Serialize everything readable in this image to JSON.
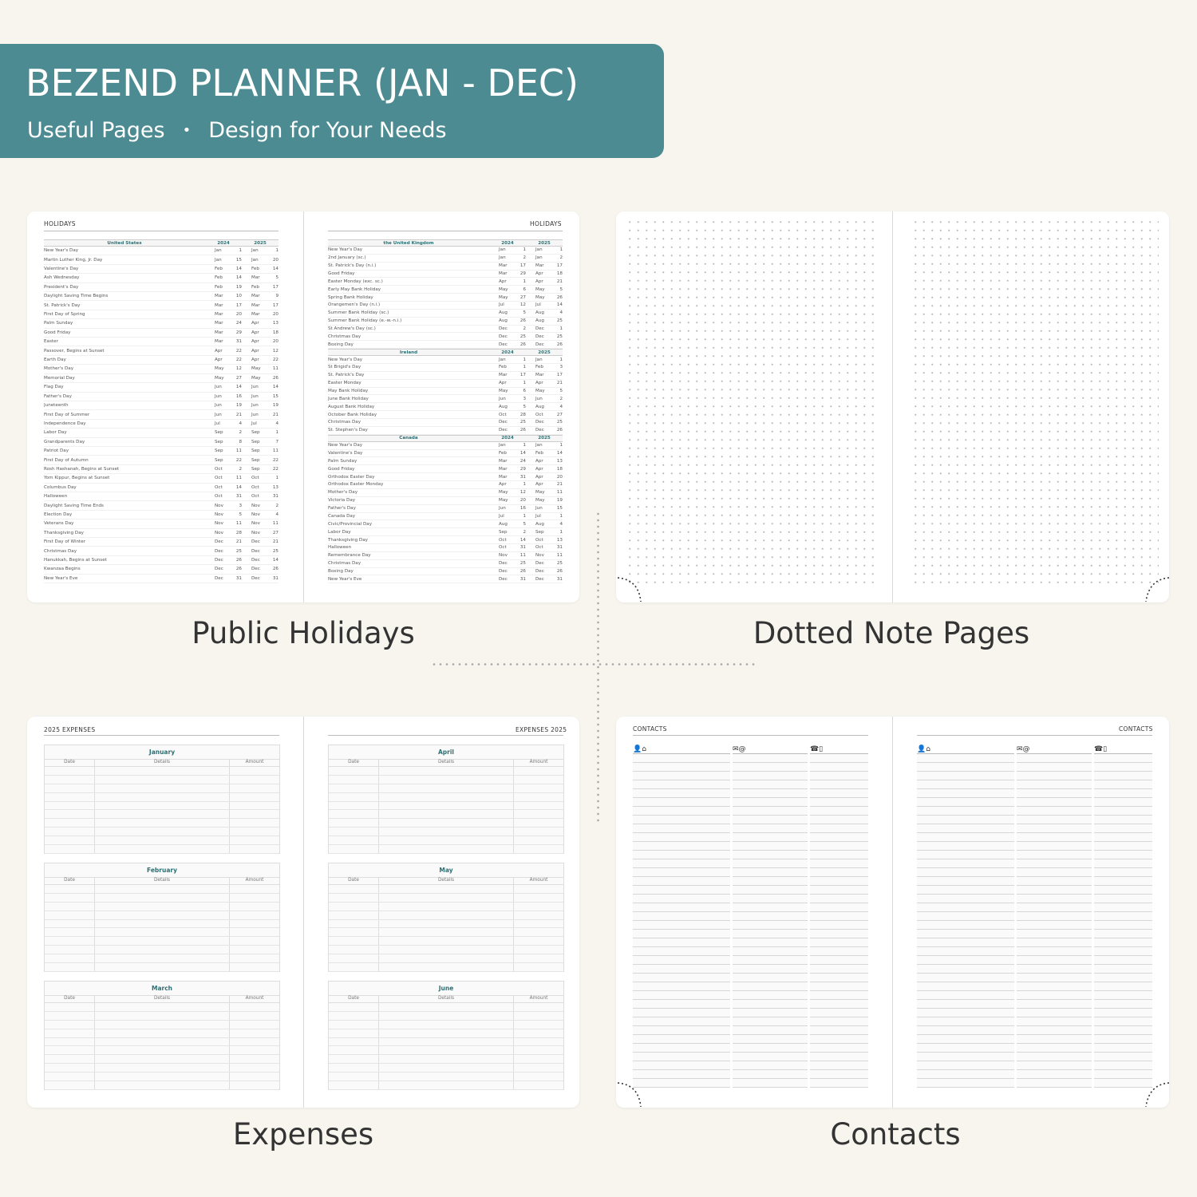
{
  "banner": {
    "title": "BEZEND PLANNER (JAN - DEC)",
    "subtitle_a": "Useful Pages",
    "bullet": "•",
    "subtitle_b": "Design for Your Needs",
    "color": "#4b8b91"
  },
  "labels": {
    "holidays": "Public Holidays",
    "dotted": "Dotted Note Pages",
    "expenses": "Expenses",
    "contacts": "Contacts"
  },
  "holidays": {
    "page_title": "HOLIDAYS",
    "year_a": "2024",
    "year_b": "2025",
    "us": {
      "country": "United States",
      "rows": [
        [
          "New Year's Day",
          "Jan",
          "1",
          "Jan",
          "1"
        ],
        [
          "Martin Luther King, Jr. Day",
          "Jan",
          "15",
          "Jan",
          "20"
        ],
        [
          "Valentine's Day",
          "Feb",
          "14",
          "Feb",
          "14"
        ],
        [
          "Ash Wednesday",
          "Feb",
          "14",
          "Mar",
          "5"
        ],
        [
          "President's Day",
          "Feb",
          "19",
          "Feb",
          "17"
        ],
        [
          "Daylight Saving Time Begins",
          "Mar",
          "10",
          "Mar",
          "9"
        ],
        [
          "St. Patrick's Day",
          "Mar",
          "17",
          "Mar",
          "17"
        ],
        [
          "First Day of Spring",
          "Mar",
          "20",
          "Mar",
          "20"
        ],
        [
          "Palm Sunday",
          "Mar",
          "24",
          "Apr",
          "13"
        ],
        [
          "Good Friday",
          "Mar",
          "29",
          "Apr",
          "18"
        ],
        [
          "Easter",
          "Mar",
          "31",
          "Apr",
          "20"
        ],
        [
          "Passover, Begins at Sunset",
          "Apr",
          "22",
          "Apr",
          "12"
        ],
        [
          "Earth Day",
          "Apr",
          "22",
          "Apr",
          "22"
        ],
        [
          "Mother's Day",
          "May",
          "12",
          "May",
          "11"
        ],
        [
          "Memorial Day",
          "May",
          "27",
          "May",
          "26"
        ],
        [
          "Flag Day",
          "Jun",
          "14",
          "Jun",
          "14"
        ],
        [
          "Father's Day",
          "Jun",
          "16",
          "Jun",
          "15"
        ],
        [
          "Juneteenth",
          "Jun",
          "19",
          "Jun",
          "19"
        ],
        [
          "First Day of Summer",
          "Jun",
          "21",
          "Jun",
          "21"
        ],
        [
          "Independence Day",
          "Jul",
          "4",
          "Jul",
          "4"
        ],
        [
          "Labor Day",
          "Sep",
          "2",
          "Sep",
          "1"
        ],
        [
          "Grandparents Day",
          "Sep",
          "8",
          "Sep",
          "7"
        ],
        [
          "Patriot Day",
          "Sep",
          "11",
          "Sep",
          "11"
        ],
        [
          "First Day of Autumn",
          "Sep",
          "22",
          "Sep",
          "22"
        ],
        [
          "Rosh Hashanah, Begins at Sunset",
          "Oct",
          "2",
          "Sep",
          "22"
        ],
        [
          "Yom Kippur, Begins at Sunset",
          "Oct",
          "11",
          "Oct",
          "1"
        ],
        [
          "Columbus Day",
          "Oct",
          "14",
          "Oct",
          "13"
        ],
        [
          "Halloween",
          "Oct",
          "31",
          "Oct",
          "31"
        ],
        [
          "Daylight Saving Time Ends",
          "Nov",
          "3",
          "Nov",
          "2"
        ],
        [
          "Election Day",
          "Nov",
          "5",
          "Nov",
          "4"
        ],
        [
          "Veterans Day",
          "Nov",
          "11",
          "Nov",
          "11"
        ],
        [
          "Thanksgiving Day",
          "Nov",
          "28",
          "Nov",
          "27"
        ],
        [
          "First Day of Winter",
          "Dec",
          "21",
          "Dec",
          "21"
        ],
        [
          "Christmas Day",
          "Dec",
          "25",
          "Dec",
          "25"
        ],
        [
          "Hanukkah, Begins at Sunset",
          "Dec",
          "26",
          "Dec",
          "14"
        ],
        [
          "Kwanzaa Begins",
          "Dec",
          "26",
          "Dec",
          "26"
        ],
        [
          "New Year's Eve",
          "Dec",
          "31",
          "Dec",
          "31"
        ]
      ]
    },
    "uk": {
      "country": "the United Kingdom",
      "rows": [
        [
          "New Year's Day",
          "Jan",
          "1",
          "Jan",
          "1"
        ],
        [
          "2nd January (sc.)",
          "Jan",
          "2",
          "Jan",
          "2"
        ],
        [
          "St. Patrick's Day (n.i.)",
          "Mar",
          "17",
          "Mar",
          "17"
        ],
        [
          "Good Friday",
          "Mar",
          "29",
          "Apr",
          "18"
        ],
        [
          "Easter Monday (exc. sc.)",
          "Apr",
          "1",
          "Apr",
          "21"
        ],
        [
          "Early May Bank Holiday",
          "May",
          "6",
          "May",
          "5"
        ],
        [
          "Spring Bank Holiday",
          "May",
          "27",
          "May",
          "26"
        ],
        [
          "Orangemen's Day (n.i.)",
          "Jul",
          "12",
          "Jul",
          "14"
        ],
        [
          "Summer Bank Holiday (sc.)",
          "Aug",
          "5",
          "Aug",
          "4"
        ],
        [
          "Summer Bank Holiday (e.-w.-n.i.)",
          "Aug",
          "26",
          "Aug",
          "25"
        ],
        [
          "St Andrew's Day (sc.)",
          "Dec",
          "2",
          "Dec",
          "1"
        ],
        [
          "Christmas Day",
          "Dec",
          "25",
          "Dec",
          "25"
        ],
        [
          "Boxing Day",
          "Dec",
          "26",
          "Dec",
          "26"
        ]
      ]
    },
    "ie": {
      "country": "Ireland",
      "rows": [
        [
          "New Year's Day",
          "Jan",
          "1",
          "Jan",
          "1"
        ],
        [
          "St Brigid's Day",
          "Feb",
          "1",
          "Feb",
          "3"
        ],
        [
          "St. Patrick's Day",
          "Mar",
          "17",
          "Mar",
          "17"
        ],
        [
          "Easter Monday",
          "Apr",
          "1",
          "Apr",
          "21"
        ],
        [
          "May Bank Holiday",
          "May",
          "6",
          "May",
          "5"
        ],
        [
          "June Bank Holiday",
          "Jun",
          "3",
          "Jun",
          "2"
        ],
        [
          "August Bank Holiday",
          "Aug",
          "5",
          "Aug",
          "4"
        ],
        [
          "October Bank Holiday",
          "Oct",
          "28",
          "Oct",
          "27"
        ],
        [
          "Christmas Day",
          "Dec",
          "25",
          "Dec",
          "25"
        ],
        [
          "St. Stephen's Day",
          "Dec",
          "26",
          "Dec",
          "26"
        ]
      ]
    },
    "ca": {
      "country": "Canada",
      "rows": [
        [
          "New Year's Day",
          "Jan",
          "1",
          "Jan",
          "1"
        ],
        [
          "Valentine's Day",
          "Feb",
          "14",
          "Feb",
          "14"
        ],
        [
          "Palm Sunday",
          "Mar",
          "24",
          "Apr",
          "13"
        ],
        [
          "Good Friday",
          "Mar",
          "29",
          "Apr",
          "18"
        ],
        [
          "Orthodox Easter Day",
          "Mar",
          "31",
          "Apr",
          "20"
        ],
        [
          "Orthodox Easter Monday",
          "Apr",
          "1",
          "Apr",
          "21"
        ],
        [
          "Mother's Day",
          "May",
          "12",
          "May",
          "11"
        ],
        [
          "Victoria Day",
          "May",
          "20",
          "May",
          "19"
        ],
        [
          "Father's Day",
          "Jun",
          "16",
          "Jun",
          "15"
        ],
        [
          "Canada Day",
          "Jul",
          "1",
          "Jul",
          "1"
        ],
        [
          "Civic/Provincial Day",
          "Aug",
          "5",
          "Aug",
          "4"
        ],
        [
          "Labor Day",
          "Sep",
          "2",
          "Sep",
          "1"
        ],
        [
          "Thanksgiving Day",
          "Oct",
          "14",
          "Oct",
          "13"
        ],
        [
          "Halloween",
          "Oct",
          "31",
          "Oct",
          "31"
        ],
        [
          "Remembrance Day",
          "Nov",
          "11",
          "Nov",
          "11"
        ],
        [
          "Christmas Day",
          "Dec",
          "25",
          "Dec",
          "25"
        ],
        [
          "Boxing Day",
          "Dec",
          "26",
          "Dec",
          "26"
        ],
        [
          "New Year's Eve",
          "Dec",
          "31",
          "Dec",
          "31"
        ]
      ]
    }
  },
  "expenses": {
    "left_title": "2025 EXPENSES",
    "right_title": "EXPENSES 2025",
    "months_left": [
      "January",
      "February",
      "March"
    ],
    "months_right": [
      "April",
      "May",
      "June"
    ],
    "columns": [
      "Date",
      "Details",
      "Amount"
    ]
  },
  "contacts": {
    "title": "CONTACTS",
    "icons": [
      "person-home",
      "mail-at",
      "phone-mobile"
    ],
    "icon_glyphs": [
      "👤⌂",
      "✉@",
      "☎▯"
    ]
  }
}
